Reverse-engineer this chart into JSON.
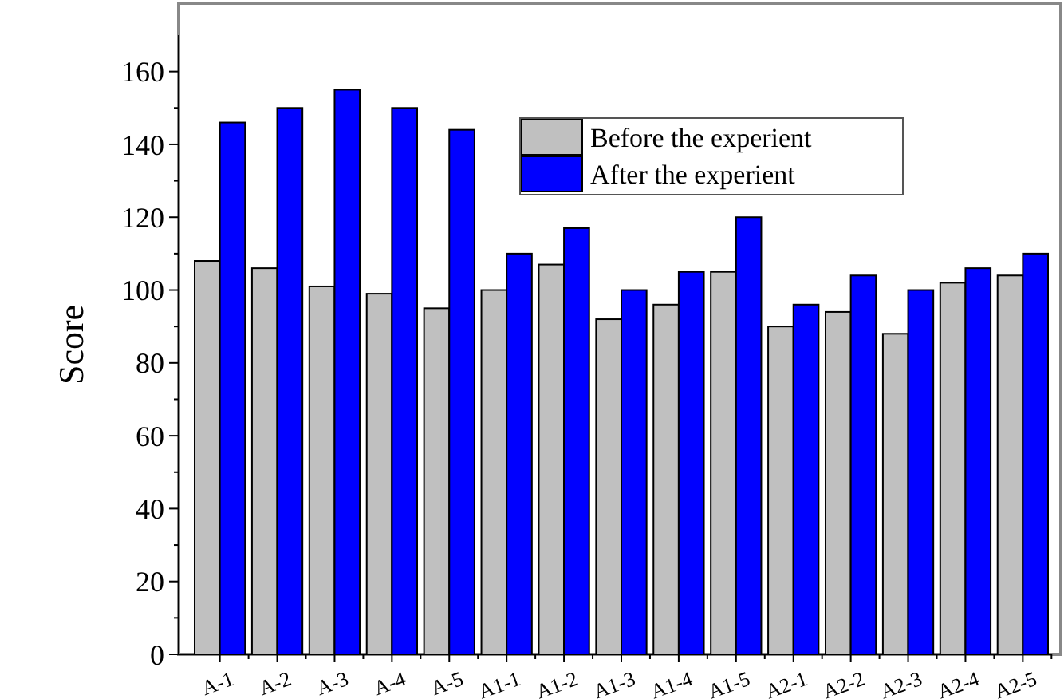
{
  "chart_data": {
    "type": "bar",
    "ylabel": "Score",
    "categories": [
      "A-1",
      "A-2",
      "A-3",
      "A-4",
      "A-5",
      "A1-1",
      "A1-2",
      "A1-3",
      "A1-4",
      "A1-5",
      "A2-1",
      "A2-2",
      "A2-3",
      "A2-4",
      "A2-5"
    ],
    "series": [
      {
        "name": "Before the experient",
        "color": "#c0c0c0",
        "values": [
          108,
          106,
          101,
          99,
          95,
          100,
          107,
          92,
          96,
          105,
          90,
          94,
          88,
          102,
          104
        ]
      },
      {
        "name": "After the experient",
        "color": "#0000ff",
        "values": [
          146,
          150,
          155,
          150,
          144,
          110,
          117,
          100,
          105,
          120,
          96,
          104,
          100,
          106,
          110
        ]
      }
    ],
    "ylim": [
      0,
      170
    ],
    "yticks": [
      0,
      20,
      40,
      60,
      80,
      100,
      120,
      140,
      160
    ],
    "grid": false,
    "legend": "top right"
  }
}
